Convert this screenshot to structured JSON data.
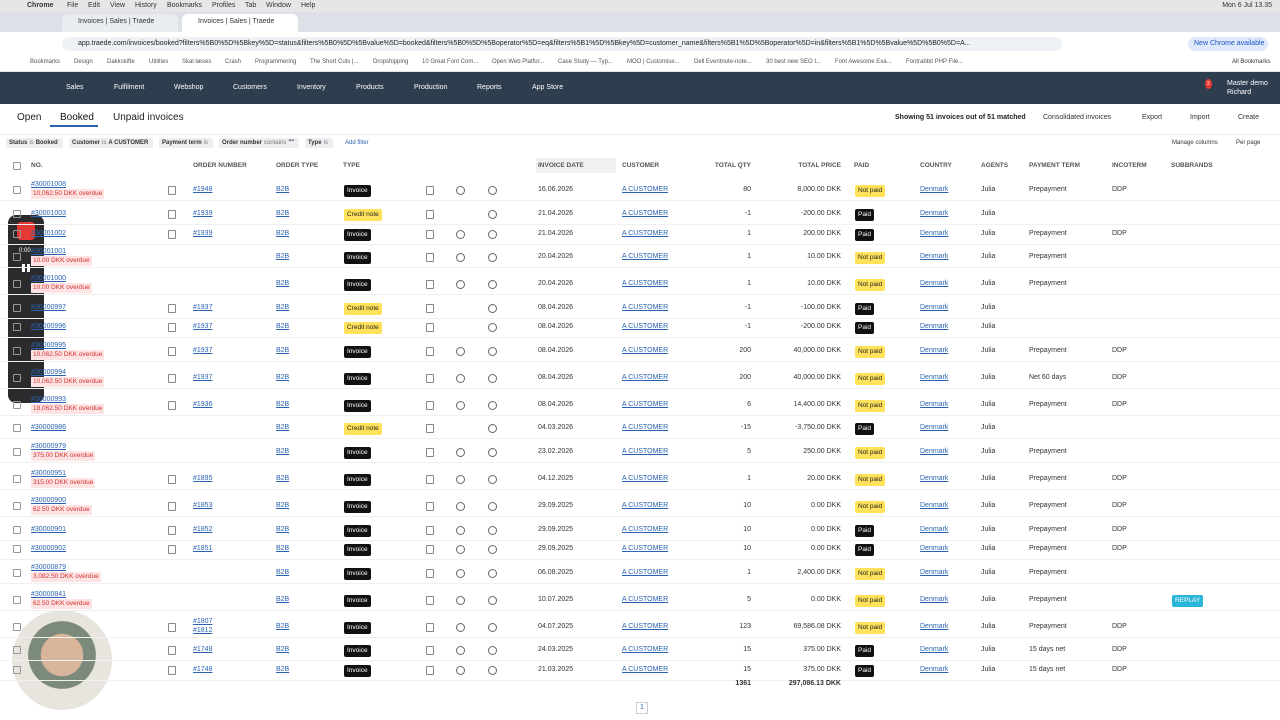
{
  "menubar": {
    "app": "Chrome",
    "items": [
      "File",
      "Edit",
      "View",
      "History",
      "Bookmarks",
      "Profiles",
      "Tab",
      "Window",
      "Help"
    ],
    "clock": "Mon 6 Jul 13.35"
  },
  "tabs": [
    "Invoices | Sales | Traede",
    "Invoices | Sales | Traede"
  ],
  "address": {
    "url": "app.traede.com/invoices/booked?filters%5B0%5D%5Bkey%5D=status&filters%5B0%5D%5Bvalue%5D=booked&filters%5B0%5D%5Boperator%5D=eq&filters%5B1%5D%5Bkey%5D=customer_name&filters%5B1%5D%5Boperator%5D=in&filters%5B1%5D%5Bvalue%5D%5B0%5D=A...",
    "update": "New Chrome available"
  },
  "bookmarks": {
    "items": [
      "Bookmarks",
      "Design",
      "Dakkskifte",
      "Utilities",
      "Skal læses",
      "Crash",
      "Programmering",
      "The Short Cuts |...",
      "Dropshipping",
      "10 Great Font Com...",
      "Open Web Platfor...",
      "Case Study — Typ...",
      "MOO | Customise...",
      "Dell Eventnote-note...",
      "30 best new SEO t...",
      "Font Awesome Exa...",
      "Fontrabbit PHP File..."
    ],
    "all": "All Bookmarks"
  },
  "nav": {
    "items": [
      "Sales",
      "Fulfilment",
      "Webshop",
      "Customers",
      "Inventory",
      "Products",
      "Production",
      "Reports",
      "App Store"
    ],
    "badge": "2",
    "user": "Master demo",
    "user_sub": "Richard"
  },
  "subtabs": {
    "items": [
      "Open",
      "Booked",
      "Unpaid invoices"
    ],
    "active": 1
  },
  "toolbar": {
    "showing": "Showing 51 invoices out of 51 matched",
    "actions": [
      "Consolidated invoices",
      "Export",
      "Import",
      "Create"
    ]
  },
  "filters": {
    "chips": [
      {
        "key": "Status",
        "op": "is",
        "value": "Booked"
      },
      {
        "key": "Customer",
        "op": "is",
        "value": "A CUSTOMER"
      },
      {
        "key": "Payment term",
        "op": "is"
      },
      {
        "key": "Order number",
        "op": "contains",
        "value": "\"\""
      },
      {
        "key": "Type",
        "op": "is"
      }
    ],
    "add": "Add filter",
    "manage": "Manage columns",
    "per_page": "Per page"
  },
  "table": {
    "columns": [
      "NO.",
      "ORDER NUMBER",
      "ORDER TYPE",
      "TYPE",
      "INVOICE DATE",
      "CUSTOMER",
      "TOTAL QTY",
      "TOTAL PRICE",
      "PAID",
      "COUNTRY",
      "AGENTS",
      "PAYMENT TERM",
      "INCOTERM",
      "SUBBRANDS"
    ],
    "rows": [
      {
        "no": "#30001008",
        "overdue": "10,062.50 DKK overdue",
        "order": [
          "#1948"
        ],
        "order_type": "B2B",
        "type": "Invoice",
        "date": "16.06.2026",
        "customer": "A CUSTOMER",
        "qty": 80,
        "price": "8,000.00 DKK",
        "paid": "Not paid",
        "country": "Denmark",
        "agent": "Julia",
        "term": "Prepayment",
        "incoterm": "DDP"
      },
      {
        "no": "#30001003",
        "order": [
          "#1939"
        ],
        "order_type": "B2B",
        "type": "Credit note",
        "date": "21.04.2026",
        "customer": "A CUSTOMER",
        "qty": -1,
        "price": "-200.00 DKK",
        "paid": "Paid",
        "country": "Denmark",
        "agent": "Julia"
      },
      {
        "no": "#30001002",
        "order": [
          "#1939"
        ],
        "order_type": "B2B",
        "type": "Invoice",
        "date": "21.04.2026",
        "customer": "A CUSTOMER",
        "qty": 1,
        "price": "200.00 DKK",
        "paid": "Paid",
        "country": "Denmark",
        "agent": "Julia",
        "term": "Prepayment",
        "incoterm": "DDP"
      },
      {
        "no": "#30001001",
        "overdue": "10.00 DKK overdue",
        "order": [],
        "order_type": "B2B",
        "type": "Invoice",
        "date": "20.04.2026",
        "customer": "A CUSTOMER",
        "qty": 1,
        "price": "10.00 DKK",
        "paid": "Not paid",
        "country": "Denmark",
        "agent": "Julia",
        "term": "Prepayment"
      },
      {
        "no": "#30001000",
        "overdue": "10.00 DKK overdue",
        "order": [],
        "order_type": "B2B",
        "type": "Invoice",
        "date": "20.04.2026",
        "customer": "A CUSTOMER",
        "qty": 1,
        "price": "10.00 DKK",
        "paid": "Not paid",
        "country": "Denmark",
        "agent": "Julia",
        "term": "Prepayment"
      },
      {
        "no": "#30000997",
        "order": [
          "#1937"
        ],
        "order_type": "B2B",
        "type": "Credit note",
        "date": "08.04.2026",
        "customer": "A CUSTOMER",
        "qty": -1,
        "price": "-100.00 DKK",
        "paid": "Paid",
        "country": "Denmark",
        "agent": "Julia"
      },
      {
        "no": "#30000996",
        "order": [
          "#1937"
        ],
        "order_type": "B2B",
        "type": "Credit note",
        "date": "08.04.2026",
        "customer": "A CUSTOMER",
        "qty": -1,
        "price": "-200.00 DKK",
        "paid": "Paid",
        "country": "Denmark",
        "agent": "Julia"
      },
      {
        "no": "#30000995",
        "overdue": "10,062.50 DKK overdue",
        "order": [
          "#1937"
        ],
        "order_type": "B2B",
        "type": "Invoice",
        "date": "08.04.2026",
        "customer": "A CUSTOMER",
        "qty": 200,
        "price": "40,000.00 DKK",
        "paid": "Not paid",
        "country": "Denmark",
        "agent": "Julia",
        "term": "Prepayment",
        "incoterm": "DDP"
      },
      {
        "no": "#30000994",
        "overdue": "10,062.50 DKK overdue",
        "order": [
          "#1937"
        ],
        "order_type": "B2B",
        "type": "Invoice",
        "date": "08.04.2026",
        "customer": "A CUSTOMER",
        "qty": 200,
        "price": "40,000.00 DKK",
        "paid": "Not paid",
        "country": "Denmark",
        "agent": "Julia",
        "term": "Net 60 days",
        "incoterm": "DDP"
      },
      {
        "no": "#30000993",
        "overdue": "18,062.50 DKK overdue",
        "order": [
          "#1936"
        ],
        "order_type": "B2B",
        "type": "Invoice",
        "date": "08.04.2026",
        "customer": "A CUSTOMER",
        "qty": 6,
        "price": "14,400.00 DKK",
        "paid": "Not paid",
        "country": "Denmark",
        "agent": "Julia",
        "term": "Prepayment",
        "incoterm": "DDP"
      },
      {
        "no": "#30000986",
        "order": [],
        "order_type": "B2B",
        "type": "Credit note",
        "date": "04.03.2026",
        "customer": "A CUSTOMER",
        "qty": -15,
        "price": "-3,750.00 DKK",
        "paid": "Paid",
        "country": "Denmark",
        "agent": "Julia"
      },
      {
        "no": "#30000979",
        "overdue": "375.00 DKK overdue",
        "order": [],
        "order_type": "B2B",
        "type": "Invoice",
        "date": "23.02.2026",
        "customer": "A CUSTOMER",
        "qty": 5,
        "price": "250.00 DKK",
        "paid": "Not paid",
        "country": "Denmark",
        "agent": "Julia",
        "term": "Prepayment"
      },
      {
        "no": "#30000951",
        "overdue": "315.00 DKK overdue",
        "order": [
          "#1895"
        ],
        "order_type": "B2B",
        "type": "Invoice",
        "date": "04.12.2025",
        "customer": "A CUSTOMER",
        "qty": 1,
        "price": "20.00 DKK",
        "paid": "Not paid",
        "country": "Denmark",
        "agent": "Julia",
        "term": "Prepayment",
        "incoterm": "DDP"
      },
      {
        "no": "#30000900",
        "overdue": "62.50 DKK overdue",
        "order": [
          "#1853"
        ],
        "order_type": "B2B",
        "type": "Invoice",
        "date": "29.09.2025",
        "customer": "A CUSTOMER",
        "qty": 10,
        "price": "0.00 DKK",
        "paid": "Not paid",
        "country": "Denmark",
        "agent": "Julia",
        "term": "Prepayment",
        "incoterm": "DDP"
      },
      {
        "no": "#30000901",
        "order": [
          "#1852"
        ],
        "order_type": "B2B",
        "type": "Invoice",
        "date": "29.09.2025",
        "customer": "A CUSTOMER",
        "qty": 10,
        "price": "0.00 DKK",
        "paid": "Paid",
        "country": "Denmark",
        "agent": "Julia",
        "term": "Prepayment",
        "incoterm": "DDP"
      },
      {
        "no": "#30000902",
        "order": [
          "#1851"
        ],
        "order_type": "B2B",
        "type": "Invoice",
        "date": "29.09.2025",
        "customer": "A CUSTOMER",
        "qty": 10,
        "price": "0.00 DKK",
        "paid": "Paid",
        "country": "Denmark",
        "agent": "Julia",
        "term": "Prepayment",
        "incoterm": "DDP"
      },
      {
        "no": "#30000879",
        "overdue": "3,082.50 DKK overdue",
        "order": [],
        "order_type": "B2B",
        "type": "Invoice",
        "date": "06.08.2025",
        "customer": "A CUSTOMER",
        "qty": 1,
        "price": "2,400.00 DKK",
        "paid": "Not paid",
        "country": "Denmark",
        "agent": "Julia",
        "term": "Prepayment"
      },
      {
        "no": "#30000841",
        "overdue": "62.50 DKK overdue",
        "order": [],
        "order_type": "B2B",
        "type": "Invoice",
        "date": "10.07.2025",
        "customer": "A CUSTOMER",
        "qty": 5,
        "price": "0.00 DKK",
        "paid": "Not paid",
        "country": "Denmark",
        "agent": "Julia",
        "term": "Prepayment",
        "subbrand": "REPLAY"
      },
      {
        "no": null,
        "order": [
          "#1807",
          "#1812"
        ],
        "order_type": "B2B",
        "type": "Invoice",
        "date": "04.07.2025",
        "customer": "A CUSTOMER",
        "qty": 123,
        "price": "69,586.08 DKK",
        "paid": "Not paid",
        "country": "Denmark",
        "agent": "Julia",
        "term": "Prepayment",
        "incoterm": "DDP"
      },
      {
        "no": null,
        "order": [
          "#1748"
        ],
        "order_type": "B2B",
        "type": "Invoice",
        "date": "24.03.2025",
        "customer": "A CUSTOMER",
        "qty": 15,
        "price": "375.00 DKK",
        "paid": "Paid",
        "country": "Denmark",
        "agent": "Julia",
        "term": "15 days net",
        "incoterm": "DDP"
      },
      {
        "no": null,
        "order": [
          "#1748"
        ],
        "order_type": "B2B",
        "type": "Invoice",
        "date": "21.03.2025",
        "customer": "A CUSTOMER",
        "qty": 15,
        "price": "375.00 DKK",
        "paid": "Paid",
        "country": "Denmark",
        "agent": "Julia",
        "term": "15 days net",
        "incoterm": "DDP"
      }
    ],
    "totals": {
      "qty": 1361,
      "price": "297,086.13 DKK"
    }
  },
  "pagination": {
    "page": 1
  },
  "recorder": {
    "time": "0:00"
  }
}
